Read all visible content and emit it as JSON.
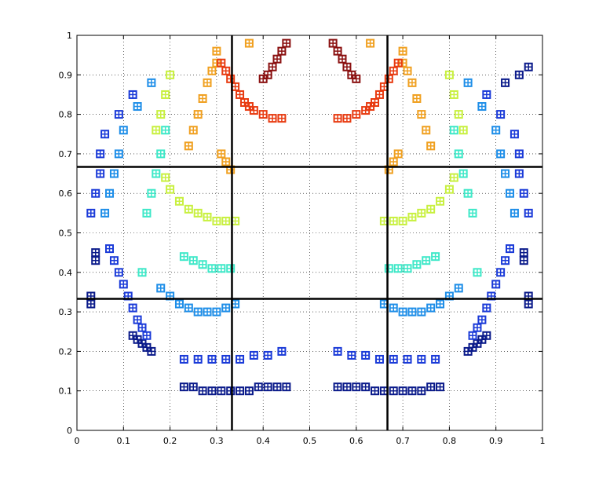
{
  "chart_data": {
    "type": "scatter",
    "title": "",
    "xlabel": "",
    "ylabel": "",
    "xlim": [
      0,
      1
    ],
    "ylim": [
      0,
      1
    ],
    "grid": true,
    "grid_style": "dotted",
    "x_ticks": [
      "0",
      "0.1",
      "0.2",
      "0.3",
      "0.4",
      "0.5",
      "0.6",
      "0.7",
      "0.8",
      "0.9",
      "1"
    ],
    "y_ticks": [
      "0",
      "0.1",
      "0.2",
      "0.3",
      "0.4",
      "0.5",
      "0.6",
      "0.7",
      "0.8",
      "0.9",
      "1"
    ],
    "reference_lines": {
      "vertical": [
        0.333,
        0.667
      ],
      "horizontal": [
        0.333,
        0.667
      ],
      "color": "#000000"
    },
    "colormap": "jet",
    "series": [
      {
        "color": "#0a1a8a",
        "x": [
          0.12,
          0.13,
          0.14,
          0.15,
          0.16,
          0.23,
          0.25,
          0.27,
          0.29,
          0.31,
          0.33,
          0.35,
          0.37,
          0.39,
          0.41,
          0.43,
          0.45,
          0.56,
          0.58,
          0.6,
          0.62,
          0.64,
          0.66,
          0.68,
          0.7,
          0.72,
          0.74,
          0.76,
          0.78,
          0.84,
          0.85,
          0.86,
          0.87,
          0.88,
          0.04,
          0.04,
          0.96,
          0.96,
          0.03,
          0.03,
          0.97,
          0.97,
          0.92,
          0.95,
          0.97
        ],
        "y": [
          0.24,
          0.23,
          0.22,
          0.21,
          0.2,
          0.11,
          0.11,
          0.1,
          0.1,
          0.1,
          0.1,
          0.1,
          0.1,
          0.11,
          0.11,
          0.11,
          0.11,
          0.11,
          0.11,
          0.11,
          0.11,
          0.1,
          0.1,
          0.1,
          0.1,
          0.1,
          0.1,
          0.11,
          0.11,
          0.2,
          0.21,
          0.22,
          0.23,
          0.24,
          0.45,
          0.43,
          0.45,
          0.43,
          0.32,
          0.34,
          0.32,
          0.34,
          0.88,
          0.9,
          0.92
        ]
      },
      {
        "color": "#1a3ad8",
        "x": [
          0.07,
          0.08,
          0.09,
          0.1,
          0.11,
          0.12,
          0.13,
          0.14,
          0.15,
          0.23,
          0.26,
          0.29,
          0.32,
          0.35,
          0.38,
          0.41,
          0.44,
          0.56,
          0.59,
          0.62,
          0.65,
          0.68,
          0.71,
          0.74,
          0.77,
          0.85,
          0.86,
          0.87,
          0.88,
          0.89,
          0.9,
          0.91,
          0.92,
          0.93,
          0.03,
          0.04,
          0.05,
          0.05,
          0.06,
          0.09,
          0.12,
          0.97,
          0.96,
          0.95,
          0.95,
          0.94,
          0.91,
          0.88
        ],
        "y": [
          0.46,
          0.43,
          0.4,
          0.37,
          0.34,
          0.31,
          0.28,
          0.26,
          0.24,
          0.18,
          0.18,
          0.18,
          0.18,
          0.18,
          0.19,
          0.19,
          0.2,
          0.2,
          0.19,
          0.19,
          0.18,
          0.18,
          0.18,
          0.18,
          0.18,
          0.24,
          0.26,
          0.28,
          0.31,
          0.34,
          0.37,
          0.4,
          0.43,
          0.46,
          0.55,
          0.6,
          0.65,
          0.7,
          0.75,
          0.8,
          0.85,
          0.55,
          0.6,
          0.65,
          0.7,
          0.75,
          0.8,
          0.85
        ]
      },
      {
        "color": "#1e8ee8",
        "x": [
          0.18,
          0.2,
          0.22,
          0.24,
          0.26,
          0.28,
          0.3,
          0.32,
          0.34,
          0.66,
          0.68,
          0.7,
          0.72,
          0.74,
          0.76,
          0.78,
          0.8,
          0.82,
          0.06,
          0.07,
          0.08,
          0.09,
          0.1,
          0.13,
          0.16,
          0.94,
          0.93,
          0.92,
          0.91,
          0.9,
          0.87,
          0.84
        ],
        "y": [
          0.36,
          0.34,
          0.32,
          0.31,
          0.3,
          0.3,
          0.3,
          0.31,
          0.32,
          0.32,
          0.31,
          0.3,
          0.3,
          0.3,
          0.31,
          0.32,
          0.34,
          0.36,
          0.55,
          0.6,
          0.65,
          0.7,
          0.76,
          0.82,
          0.88,
          0.55,
          0.6,
          0.65,
          0.7,
          0.76,
          0.82,
          0.88
        ]
      },
      {
        "color": "#3ee8c8",
        "x": [
          0.23,
          0.25,
          0.27,
          0.29,
          0.31,
          0.33,
          0.67,
          0.69,
          0.71,
          0.73,
          0.75,
          0.77,
          0.15,
          0.16,
          0.17,
          0.18,
          0.19,
          0.81,
          0.82,
          0.83,
          0.84,
          0.85,
          0.14,
          0.86
        ],
        "y": [
          0.44,
          0.43,
          0.42,
          0.41,
          0.41,
          0.41,
          0.41,
          0.41,
          0.41,
          0.42,
          0.43,
          0.44,
          0.55,
          0.6,
          0.65,
          0.7,
          0.76,
          0.76,
          0.7,
          0.65,
          0.6,
          0.55,
          0.4,
          0.4
        ]
      },
      {
        "color": "#c8f040",
        "x": [
          0.19,
          0.2,
          0.22,
          0.24,
          0.26,
          0.28,
          0.3,
          0.32,
          0.34,
          0.66,
          0.68,
          0.7,
          0.72,
          0.74,
          0.76,
          0.78,
          0.8,
          0.81,
          0.17,
          0.18,
          0.19,
          0.2,
          0.8,
          0.81,
          0.82,
          0.83
        ],
        "y": [
          0.64,
          0.61,
          0.58,
          0.56,
          0.55,
          0.54,
          0.53,
          0.53,
          0.53,
          0.53,
          0.53,
          0.53,
          0.54,
          0.55,
          0.56,
          0.58,
          0.61,
          0.64,
          0.76,
          0.8,
          0.85,
          0.9,
          0.9,
          0.85,
          0.8,
          0.76
        ]
      },
      {
        "color": "#f0a020",
        "x": [
          0.24,
          0.25,
          0.26,
          0.27,
          0.28,
          0.29,
          0.3,
          0.31,
          0.32,
          0.33,
          0.67,
          0.68,
          0.69,
          0.7,
          0.71,
          0.72,
          0.73,
          0.74,
          0.75,
          0.76,
          0.3,
          0.7,
          0.37,
          0.63
        ],
        "y": [
          0.72,
          0.76,
          0.8,
          0.84,
          0.88,
          0.91,
          0.93,
          0.7,
          0.68,
          0.66,
          0.66,
          0.68,
          0.7,
          0.93,
          0.91,
          0.88,
          0.84,
          0.8,
          0.76,
          0.72,
          0.96,
          0.96,
          0.98,
          0.98
        ]
      },
      {
        "color": "#e83a10",
        "x": [
          0.31,
          0.32,
          0.33,
          0.34,
          0.35,
          0.36,
          0.37,
          0.38,
          0.4,
          0.42,
          0.44,
          0.56,
          0.58,
          0.6,
          0.62,
          0.63,
          0.64,
          0.65,
          0.66,
          0.67,
          0.68,
          0.69
        ],
        "y": [
          0.93,
          0.91,
          0.89,
          0.87,
          0.85,
          0.83,
          0.82,
          0.81,
          0.8,
          0.79,
          0.79,
          0.79,
          0.79,
          0.8,
          0.81,
          0.82,
          0.83,
          0.85,
          0.87,
          0.89,
          0.91,
          0.93
        ]
      },
      {
        "color": "#8a1010",
        "x": [
          0.4,
          0.41,
          0.42,
          0.43,
          0.44,
          0.45,
          0.55,
          0.56,
          0.57,
          0.58,
          0.59,
          0.6
        ],
        "y": [
          0.89,
          0.9,
          0.92,
          0.94,
          0.96,
          0.98,
          0.98,
          0.96,
          0.94,
          0.92,
          0.9,
          0.89
        ]
      }
    ]
  }
}
